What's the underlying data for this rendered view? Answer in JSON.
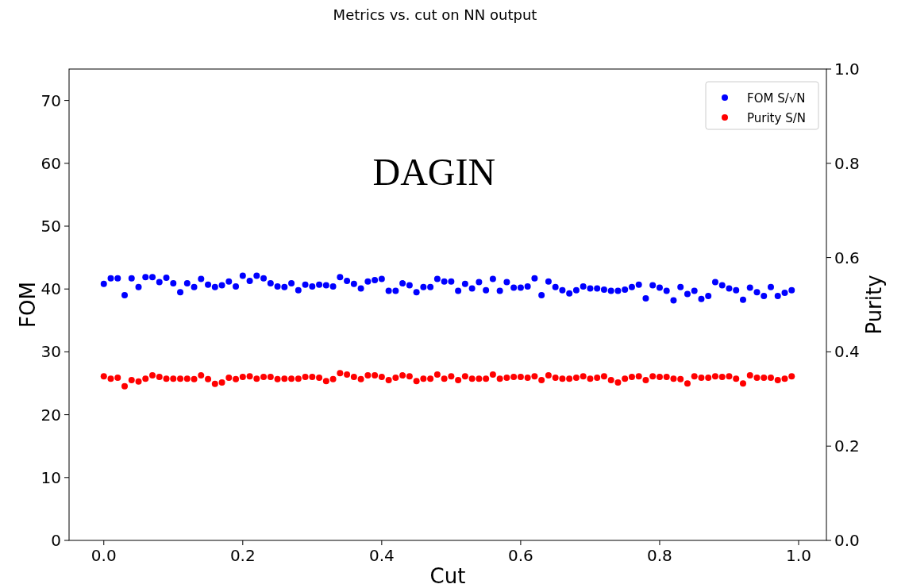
{
  "chart_data": {
    "type": "scatter",
    "title": "Metrics vs. cut on NN output",
    "xlabel": "Cut",
    "ylabel": "FOM",
    "y2label": "Purity",
    "annotations": [
      "DAGIN"
    ],
    "x": [
      0,
      0.01,
      0.02,
      0.03,
      0.04,
      0.05,
      0.06,
      0.07,
      0.08,
      0.09,
      0.1,
      0.11,
      0.12,
      0.13,
      0.14,
      0.15,
      0.16,
      0.17,
      0.18,
      0.19,
      0.2,
      0.21,
      0.22,
      0.23,
      0.24,
      0.25,
      0.26,
      0.27,
      0.28,
      0.29,
      0.3,
      0.31,
      0.32,
      0.33,
      0.34,
      0.35,
      0.36,
      0.37,
      0.38,
      0.39,
      0.4,
      0.41,
      0.42,
      0.43,
      0.44,
      0.45,
      0.46,
      0.47,
      0.48,
      0.49,
      0.5,
      0.51,
      0.52,
      0.53,
      0.54,
      0.55,
      0.56,
      0.57,
      0.58,
      0.59,
      0.6,
      0.61,
      0.62,
      0.63,
      0.64,
      0.65,
      0.66,
      0.67,
      0.68,
      0.69,
      0.7,
      0.71,
      0.72,
      0.73,
      0.74,
      0.75,
      0.76,
      0.77,
      0.78,
      0.79,
      0.8,
      0.81,
      0.82,
      0.83,
      0.84,
      0.85,
      0.86,
      0.87,
      0.88,
      0.89,
      0.9,
      0.91,
      0.92,
      0.93,
      0.94,
      0.95,
      0.96,
      0.97,
      0.98,
      0.99
    ],
    "series": [
      {
        "name": "FOM S/√N",
        "color": "#0000ff",
        "values": [
          40.8,
          41.7,
          41.7,
          39.0,
          41.7,
          40.3,
          41.9,
          41.9,
          41.1,
          41.8,
          40.9,
          39.5,
          40.9,
          40.3,
          41.6,
          40.7,
          40.3,
          40.6,
          41.2,
          40.4,
          42.1,
          41.3,
          42.1,
          41.7,
          40.9,
          40.4,
          40.3,
          40.9,
          39.8,
          40.7,
          40.4,
          40.7,
          40.6,
          40.4,
          41.9,
          41.3,
          40.8,
          40.1,
          41.2,
          41.4,
          41.6,
          39.7,
          39.7,
          40.9,
          40.6,
          39.5,
          40.3,
          40.3,
          41.6,
          41.2,
          41.2,
          39.7,
          40.8,
          40.1,
          41.1,
          39.8,
          41.6,
          39.7,
          41.1,
          40.2,
          40.2,
          40.4,
          41.7,
          39.0,
          41.2,
          40.3,
          39.8,
          39.3,
          39.8,
          40.4,
          40.1,
          40.1,
          39.9,
          39.7,
          39.7,
          39.9,
          40.3,
          40.7,
          38.5,
          40.6,
          40.2,
          39.7,
          38.2,
          40.3,
          39.2,
          39.7,
          38.4,
          38.9,
          41.1,
          40.6,
          40.1,
          39.8,
          38.3,
          40.2,
          39.5,
          38.9,
          40.3,
          38.9,
          39.4,
          39.8
        ]
      },
      {
        "name": "Purity S/N",
        "color": "#ff0000",
        "axis": "y2",
        "values": [
          0.348,
          0.343,
          0.345,
          0.327,
          0.34,
          0.337,
          0.343,
          0.35,
          0.347,
          0.343,
          0.343,
          0.343,
          0.343,
          0.342,
          0.35,
          0.342,
          0.332,
          0.335,
          0.345,
          0.342,
          0.347,
          0.348,
          0.343,
          0.347,
          0.347,
          0.342,
          0.343,
          0.343,
          0.343,
          0.347,
          0.347,
          0.345,
          0.338,
          0.342,
          0.355,
          0.352,
          0.347,
          0.342,
          0.35,
          0.35,
          0.347,
          0.34,
          0.345,
          0.35,
          0.348,
          0.338,
          0.343,
          0.343,
          0.352,
          0.343,
          0.348,
          0.34,
          0.348,
          0.343,
          0.343,
          0.343,
          0.352,
          0.343,
          0.345,
          0.347,
          0.347,
          0.345,
          0.348,
          0.34,
          0.35,
          0.345,
          0.343,
          0.343,
          0.345,
          0.348,
          0.343,
          0.345,
          0.348,
          0.34,
          0.335,
          0.343,
          0.347,
          0.348,
          0.34,
          0.348,
          0.347,
          0.347,
          0.343,
          0.342,
          0.333,
          0.348,
          0.345,
          0.345,
          0.348,
          0.347,
          0.348,
          0.343,
          0.333,
          0.35,
          0.345,
          0.345,
          0.345,
          0.34,
          0.343,
          0.348
        ]
      }
    ],
    "xlim": [
      -0.05,
      1.04
    ],
    "xticks": [
      {
        "value": 0,
        "label": "0.0"
      },
      {
        "value": 0.2,
        "label": "0.2"
      },
      {
        "value": 0.4,
        "label": "0.4"
      },
      {
        "value": 0.6,
        "label": "0.6"
      },
      {
        "value": 0.8,
        "label": "0.8"
      },
      {
        "value": 1,
        "label": "1.0"
      }
    ],
    "ylim": [
      0,
      75
    ],
    "yticks": [
      0,
      10,
      20,
      30,
      40,
      50,
      60,
      70
    ],
    "y2lim": [
      0,
      1
    ],
    "y2ticks": [
      {
        "value": 0,
        "label": "0.0"
      },
      {
        "value": 0.2,
        "label": "0.2"
      },
      {
        "value": 0.4,
        "label": "0.4"
      },
      {
        "value": 0.6,
        "label": "0.6"
      },
      {
        "value": 0.8,
        "label": "0.8"
      },
      {
        "value": 1,
        "label": "1.0"
      }
    ],
    "legend": "top right",
    "marker": "circle",
    "grid": false
  }
}
